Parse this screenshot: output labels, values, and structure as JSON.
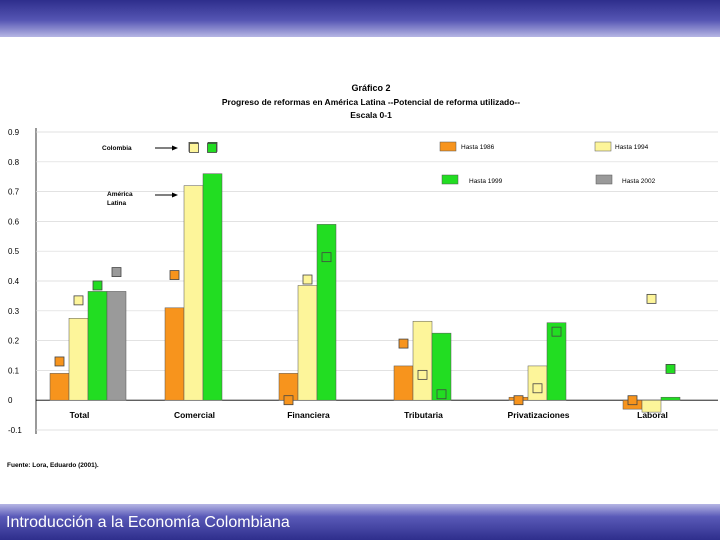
{
  "footer": {
    "text": "Introducción a la Economía Colombiana"
  },
  "colors": {
    "s1986": "#f7941d",
    "s1994": "#fdf59a",
    "s1999": "#22dd22",
    "s2002": "#9a9a9a",
    "band": "#4a4aa8"
  },
  "chart_data": {
    "type": "bar",
    "title_lines": [
      "Gráfico 2",
      "Progreso de reformas en América Latina --Potencial de reforma utilizado--",
      "Escala 0-1"
    ],
    "xlabel": "",
    "ylabel": "",
    "ylim": [
      -0.1,
      0.9
    ],
    "yticks": [
      0.9,
      0.8,
      0.7,
      0.6,
      0.5,
      0.4,
      0.3,
      0.2,
      0.1,
      0,
      -0.1
    ],
    "ytick_labels": [
      "0.9",
      "0.8",
      "0.7",
      "0.6",
      "0.5",
      "0.4",
      "0.3",
      "0.2",
      "0.1",
      "0",
      "-0.1"
    ],
    "categories": [
      "Total",
      "Comercial",
      "Financiera",
      "Tributaria",
      "Privatizaciones",
      "Laboral"
    ],
    "series": [
      {
        "name": "Hasta 1986",
        "key": "s1986",
        "values": [
          0.09,
          0.31,
          0.09,
          0.115,
          0.01,
          -0.03
        ]
      },
      {
        "name": "Hasta 1994",
        "key": "s1994",
        "values": [
          0.275,
          0.72,
          0.385,
          0.265,
          0.115,
          -0.04
        ]
      },
      {
        "name": "Hasta 1999",
        "key": "s1999",
        "values": [
          0.365,
          0.76,
          0.59,
          0.225,
          0.26,
          0.01
        ]
      },
      {
        "name": "Hasta 2002",
        "key": "s2002",
        "values": [
          0.365,
          null,
          null,
          null,
          null,
          null
        ]
      }
    ],
    "colombia_markers": [
      {
        "series": "s1986",
        "values": [
          0.13,
          0.42,
          0.0,
          0.19,
          0.0,
          0.0
        ]
      },
      {
        "series": "s1994",
        "values": [
          0.335,
          0.85,
          0.405,
          0.085,
          0.04,
          0.34
        ]
      },
      {
        "series": "s1999",
        "values": [
          0.385,
          0.85,
          0.48,
          0.02,
          0.23,
          0.105
        ]
      },
      {
        "series": "s2002",
        "values": [
          0.43,
          null,
          null,
          null,
          null,
          null
        ]
      }
    ],
    "annotations": [
      "Colombia",
      "América",
      "Latina"
    ],
    "source": "Fuente: Lora, Eduardo (2001)."
  }
}
